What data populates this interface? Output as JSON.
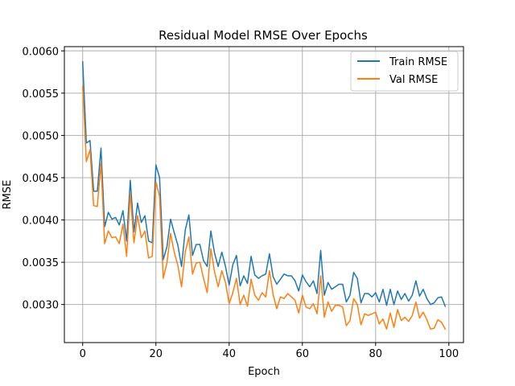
{
  "chart_data": {
    "type": "line",
    "title": "Residual Model RMSE Over Epochs",
    "xlabel": "Epoch",
    "ylabel": "RMSE",
    "xlim": [
      -5,
      104
    ],
    "ylim": [
      0.00255,
      0.00605
    ],
    "xticks": [
      0,
      20,
      40,
      60,
      80,
      100
    ],
    "yticks": [
      0.003,
      0.0035,
      0.004,
      0.0045,
      0.005,
      0.0055,
      0.006
    ],
    "ytick_labels": [
      "0.0030",
      "0.0035",
      "0.0040",
      "0.0045",
      "0.0050",
      "0.0055",
      "0.0060"
    ],
    "grid": true,
    "legend_position": "top-right",
    "series": [
      {
        "name": "Train RMSE",
        "color": "#1f77b4",
        "x": [
          0,
          1,
          2,
          3,
          4,
          5,
          6,
          7,
          8,
          9,
          10,
          11,
          12,
          13,
          14,
          15,
          16,
          17,
          18,
          19,
          20,
          21,
          22,
          23,
          24,
          25,
          26,
          27,
          28,
          29,
          30,
          31,
          32,
          33,
          34,
          35,
          36,
          37,
          38,
          39,
          40,
          41,
          42,
          43,
          44,
          45,
          46,
          47,
          48,
          49,
          50,
          51,
          52,
          53,
          54,
          55,
          56,
          57,
          58,
          59,
          60,
          61,
          62,
          63,
          64,
          65,
          66,
          67,
          68,
          69,
          70,
          71,
          72,
          73,
          74,
          75,
          76,
          77,
          78,
          79,
          80,
          81,
          82,
          83,
          84,
          85,
          86,
          87,
          88,
          89,
          90,
          91,
          92,
          93,
          94,
          95,
          96,
          97,
          98,
          99
        ],
        "values": [
          0.00587,
          0.00491,
          0.00494,
          0.00434,
          0.00434,
          0.00485,
          0.00392,
          0.00409,
          0.00401,
          0.00403,
          0.00394,
          0.00411,
          0.00375,
          0.00447,
          0.00386,
          0.0042,
          0.00397,
          0.00405,
          0.00375,
          0.00373,
          0.00465,
          0.0045,
          0.00353,
          0.00368,
          0.00401,
          0.00385,
          0.0037,
          0.00345,
          0.00388,
          0.00406,
          0.00358,
          0.00371,
          0.00371,
          0.00352,
          0.00345,
          0.00387,
          0.00361,
          0.00345,
          0.00362,
          0.00345,
          0.00323,
          0.00347,
          0.00358,
          0.00322,
          0.00334,
          0.00325,
          0.00357,
          0.00335,
          0.00331,
          0.00334,
          0.00336,
          0.0036,
          0.00333,
          0.00324,
          0.0033,
          0.00336,
          0.00334,
          0.00334,
          0.00328,
          0.00316,
          0.00335,
          0.00327,
          0.00321,
          0.00328,
          0.00313,
          0.00364,
          0.00311,
          0.00326,
          0.00318,
          0.00321,
          0.00324,
          0.00324,
          0.00303,
          0.00311,
          0.00338,
          0.00331,
          0.00302,
          0.00313,
          0.00313,
          0.00309,
          0.00314,
          0.00303,
          0.00318,
          0.00299,
          0.00318,
          0.003,
          0.00316,
          0.00306,
          0.00313,
          0.00304,
          0.00311,
          0.00328,
          0.0031,
          0.00318,
          0.00307,
          0.003,
          0.00302,
          0.00308,
          0.00309,
          0.00298
        ]
      },
      {
        "name": "Val RMSE",
        "color": "#ff7f0e",
        "x": [
          0,
          1,
          2,
          3,
          4,
          5,
          6,
          7,
          8,
          9,
          10,
          11,
          12,
          13,
          14,
          15,
          16,
          17,
          18,
          19,
          20,
          21,
          22,
          23,
          24,
          25,
          26,
          27,
          28,
          29,
          30,
          31,
          32,
          33,
          34,
          35,
          36,
          37,
          38,
          39,
          40,
          41,
          42,
          43,
          44,
          45,
          46,
          47,
          48,
          49,
          50,
          51,
          52,
          53,
          54,
          55,
          56,
          57,
          58,
          59,
          60,
          61,
          62,
          63,
          64,
          65,
          66,
          67,
          68,
          69,
          70,
          71,
          72,
          73,
          74,
          75,
          76,
          77,
          78,
          79,
          80,
          81,
          82,
          83,
          84,
          85,
          86,
          87,
          88,
          89,
          90,
          91,
          92,
          93,
          94,
          95,
          96,
          97,
          98,
          99
        ],
        "values": [
          0.00558,
          0.00469,
          0.00483,
          0.00417,
          0.00416,
          0.00467,
          0.00372,
          0.00387,
          0.00379,
          0.0038,
          0.00372,
          0.00395,
          0.00357,
          0.00432,
          0.00373,
          0.00405,
          0.00379,
          0.00387,
          0.00355,
          0.00357,
          0.00445,
          0.00428,
          0.00331,
          0.00349,
          0.00384,
          0.00362,
          0.00346,
          0.00321,
          0.00362,
          0.0038,
          0.00336,
          0.00349,
          0.0035,
          0.00331,
          0.00314,
          0.00366,
          0.00339,
          0.00321,
          0.0034,
          0.00326,
          0.00301,
          0.00314,
          0.00331,
          0.003,
          0.00311,
          0.00298,
          0.0033,
          0.00311,
          0.00305,
          0.00314,
          0.00309,
          0.0034,
          0.00312,
          0.00295,
          0.00309,
          0.00307,
          0.00313,
          0.00309,
          0.00305,
          0.0029,
          0.00311,
          0.00297,
          0.00295,
          0.00301,
          0.00289,
          0.00334,
          0.00285,
          0.00303,
          0.00292,
          0.00299,
          0.00299,
          0.00297,
          0.00275,
          0.00281,
          0.00307,
          0.003,
          0.00276,
          0.00289,
          0.00287,
          0.00289,
          0.00291,
          0.00277,
          0.00283,
          0.00271,
          0.0029,
          0.00273,
          0.00294,
          0.00281,
          0.00285,
          0.0028,
          0.00287,
          0.00303,
          0.00284,
          0.00291,
          0.00282,
          0.00271,
          0.00272,
          0.00282,
          0.00279,
          0.00271
        ]
      }
    ]
  }
}
